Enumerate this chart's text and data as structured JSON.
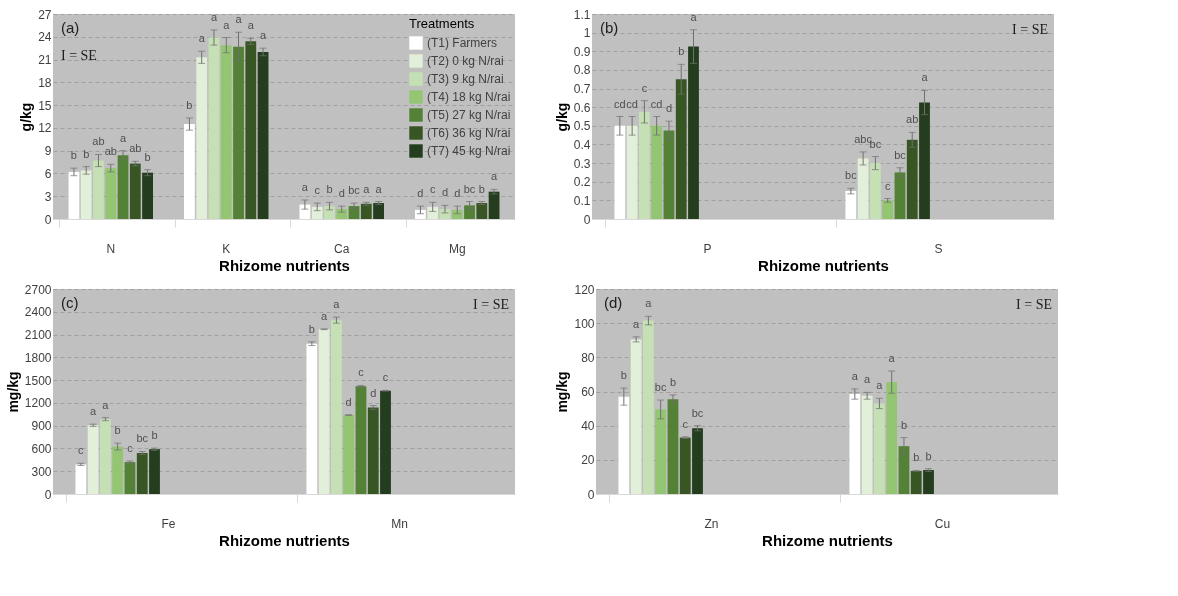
{
  "chart_data": [
    {
      "type": "bar",
      "ylabel": "g/kg",
      "xlabel": "Rhizome nutrients",
      "legend_title": "Treatments",
      "legend": "top right",
      "grid": "y",
      "annotations": [
        "(a)",
        "I = SE"
      ],
      "categories": [
        "N",
        "K",
        "Ca",
        "Mg"
      ],
      "ylim": [
        0,
        27
      ],
      "yticks": [
        0,
        3,
        6,
        9,
        12,
        15,
        18,
        21,
        24,
        27
      ],
      "series": [
        {
          "name": "(T1) Farmers",
          "color": "#ffffff",
          "values": [
            6.2,
            12.5,
            1.9,
            1.2
          ],
          "errors": [
            0.5,
            0.8,
            0.6,
            0.5
          ],
          "value_labels": [
            "b",
            "b",
            "a",
            "d"
          ]
        },
        {
          "name": "(T2) 0 kg N/rai",
          "color": "#e2efd9",
          "values": [
            6.4,
            21.3,
            1.6,
            1.6
          ],
          "errors": [
            0.5,
            0.8,
            0.5,
            0.6
          ],
          "value_labels": [
            "b",
            "a",
            "c",
            "c"
          ]
        },
        {
          "name": "(T3) 9 kg N/rai",
          "color": "#c5e0b4",
          "values": [
            7.7,
            23.9,
            1.7,
            1.3
          ],
          "errors": [
            0.8,
            1.0,
            0.5,
            0.5
          ],
          "value_labels": [
            "ab",
            "a",
            "b",
            "d"
          ]
        },
        {
          "name": "(T4) 18 kg N/rai",
          "color": "#93c572",
          "values": [
            6.7,
            22.9,
            1.3,
            1.2
          ],
          "errors": [
            0.5,
            1.0,
            0.4,
            0.5
          ],
          "value_labels": [
            "ab",
            "a",
            "d",
            "d"
          ]
        },
        {
          "name": "(T5) 27 kg N/rai",
          "color": "#538135",
          "values": [
            8.4,
            22.7,
            1.7,
            1.8
          ],
          "errors": [
            0.6,
            1.9,
            0.4,
            0.5
          ],
          "value_labels": [
            "a",
            "a",
            "bc",
            "bc"
          ]
        },
        {
          "name": "(T6) 36 kg N/rai",
          "color": "#375623",
          "values": [
            7.3,
            23.4,
            2.0,
            2.1
          ],
          "errors": [
            0.3,
            0.4,
            0.2,
            0.2
          ],
          "value_labels": [
            "ab",
            "a",
            "a",
            "b"
          ]
        },
        {
          "name": "(T7) 45 kg N/rai",
          "color": "#233d1e",
          "values": [
            6.1,
            22.0,
            2.1,
            3.6
          ],
          "errors": [
            0.4,
            0.5,
            0.2,
            0.3
          ],
          "value_labels": [
            "b",
            "a",
            "a",
            "a"
          ]
        }
      ]
    },
    {
      "type": "bar",
      "ylabel": "g/kg",
      "xlabel": "Rhizome nutrients",
      "grid": "y",
      "annotations": [
        "(b)",
        "I = SE"
      ],
      "categories": [
        "P",
        "S"
      ],
      "ylim": [
        0,
        1.1
      ],
      "yticks": [
        0,
        0.1,
        0.2,
        0.3,
        0.4,
        0.5,
        0.6,
        0.7,
        0.8,
        0.9,
        1,
        1.1
      ],
      "series": [
        {
          "color": "#ffffff",
          "values": [
            0.5,
            0.15
          ],
          "errors": [
            0.05,
            0.015
          ],
          "value_labels": [
            "cd",
            "bc"
          ]
        },
        {
          "color": "#e2efd9",
          "values": [
            0.5,
            0.325
          ],
          "errors": [
            0.05,
            0.035
          ],
          "value_labels": [
            "cd",
            "abc"
          ]
        },
        {
          "color": "#c5e0b4",
          "values": [
            0.575,
            0.3
          ],
          "errors": [
            0.06,
            0.035
          ],
          "value_labels": [
            "c",
            "bc"
          ]
        },
        {
          "color": "#93c572",
          "values": [
            0.5,
            0.1
          ],
          "errors": [
            0.05,
            0.01
          ],
          "value_labels": [
            "cd",
            "c"
          ]
        },
        {
          "color": "#538135",
          "values": [
            0.475,
            0.25
          ],
          "errors": [
            0.05,
            0.025
          ],
          "value_labels": [
            "d",
            "bc"
          ]
        },
        {
          "color": "#375623",
          "values": [
            0.75,
            0.425
          ],
          "errors": [
            0.08,
            0.04
          ],
          "value_labels": [
            "b",
            "ab"
          ]
        },
        {
          "color": "#233d1e",
          "values": [
            0.925,
            0.625
          ],
          "errors": [
            0.09,
            0.065
          ],
          "value_labels": [
            "a",
            "a"
          ]
        }
      ]
    },
    {
      "type": "bar",
      "ylabel": "mg/kg",
      "xlabel": "Rhizome nutrients",
      "grid": "y",
      "annotations": [
        "(c)",
        "I = SE"
      ],
      "categories": [
        "Fe",
        "Mn"
      ],
      "ylim": [
        0,
        2700
      ],
      "yticks": [
        0,
        300,
        600,
        900,
        1200,
        1500,
        1800,
        2100,
        2400,
        2700
      ],
      "series": [
        {
          "color": "#ffffff",
          "values": [
            390,
            1980
          ],
          "errors": [
            15,
            25
          ],
          "value_labels": [
            "c",
            "b"
          ]
        },
        {
          "color": "#e2efd9",
          "values": [
            905,
            2170
          ],
          "errors": [
            15,
            5
          ],
          "value_labels": [
            "a",
            "a"
          ]
        },
        {
          "color": "#c5e0b4",
          "values": [
            985,
            2290
          ],
          "errors": [
            20,
            40
          ],
          "value_labels": [
            "a",
            "a"
          ]
        },
        {
          "color": "#93c572",
          "values": [
            625,
            1040
          ],
          "errors": [
            45,
            5
          ],
          "value_labels": [
            "b",
            "d"
          ]
        },
        {
          "color": "#538135",
          "values": [
            420,
            1420
          ],
          "errors": [
            15,
            10
          ],
          "value_labels": [
            "c",
            "c"
          ]
        },
        {
          "color": "#375623",
          "values": [
            540,
            1140
          ],
          "errors": [
            20,
            25
          ],
          "value_labels": [
            "bc",
            "d"
          ]
        },
        {
          "color": "#233d1e",
          "values": [
            590,
            1360
          ],
          "errors": [
            15,
            5
          ],
          "value_labels": [
            "b",
            "c"
          ]
        }
      ]
    },
    {
      "type": "bar",
      "ylabel": "mg/kg",
      "xlabel": "Rhizome nutrients",
      "grid": "y",
      "annotations": [
        "(d)",
        "I = SE"
      ],
      "categories": [
        "Zn",
        "Cu"
      ],
      "ylim": [
        0,
        120
      ],
      "yticks": [
        0,
        20,
        40,
        60,
        80,
        100,
        120
      ],
      "series": [
        {
          "color": "#ffffff",
          "values": [
            57,
            58.5
          ],
          "errors": [
            5,
            3
          ],
          "value_labels": [
            "b",
            "a"
          ]
        },
        {
          "color": "#e2efd9",
          "values": [
            90.5,
            57.5
          ],
          "errors": [
            1.5,
            2
          ],
          "value_labels": [
            "a",
            "a"
          ]
        },
        {
          "color": "#c5e0b4",
          "values": [
            101.5,
            53
          ],
          "errors": [
            2.5,
            3
          ],
          "value_labels": [
            "a",
            "a"
          ]
        },
        {
          "color": "#93c572",
          "values": [
            49.5,
            65.5
          ],
          "errors": [
            5.5,
            6.5
          ],
          "value_labels": [
            "bc",
            "a"
          ]
        },
        {
          "color": "#538135",
          "values": [
            55.5,
            28
          ],
          "errors": [
            2.5,
            5
          ],
          "value_labels": [
            "b",
            "b"
          ]
        },
        {
          "color": "#375623",
          "values": [
            33,
            13.5
          ],
          "errors": [
            0.5,
            0.3
          ],
          "value_labels": [
            "c",
            "b"
          ]
        },
        {
          "color": "#233d1e",
          "values": [
            38.5,
            14
          ],
          "errors": [
            1.5,
            0.8
          ],
          "value_labels": [
            "bc",
            "b"
          ]
        }
      ]
    }
  ]
}
